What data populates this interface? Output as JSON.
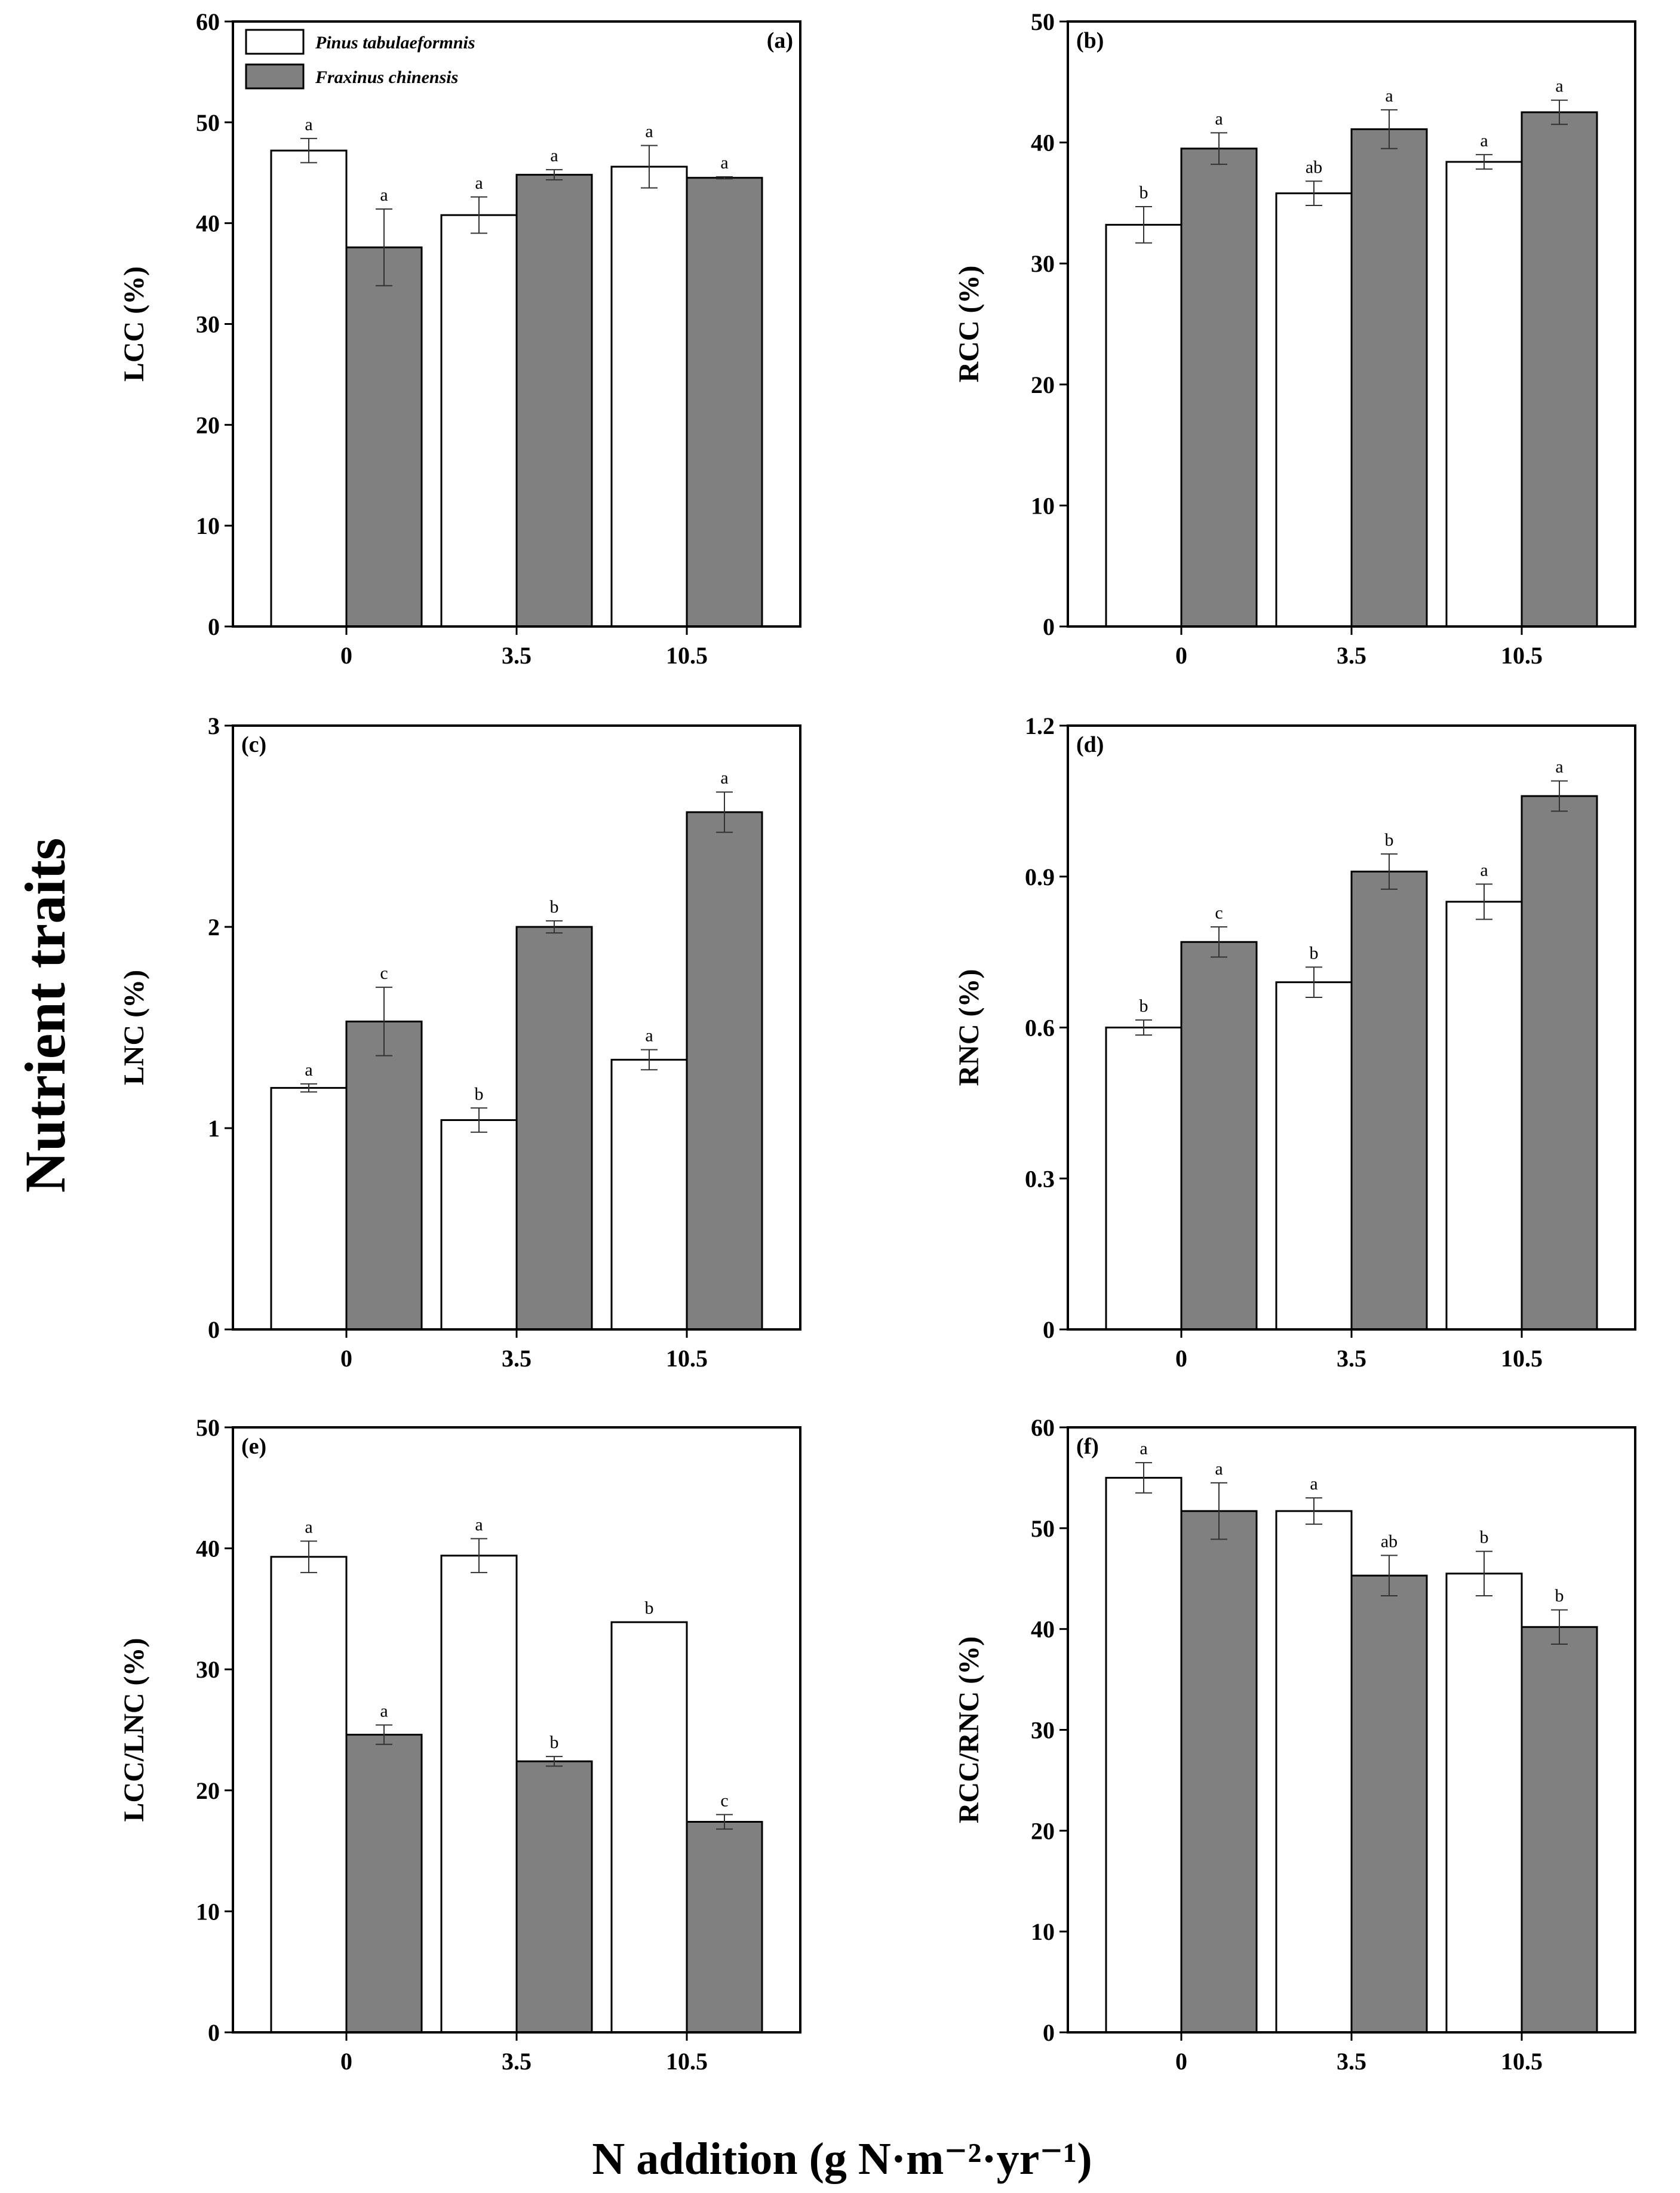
{
  "figure": {
    "y_title": "Nutrient traits",
    "x_title": "N addition (g N·m⁻²·yr⁻¹)",
    "colors": {
      "pinus": "#ffffff",
      "fraxinus": "#808080",
      "stroke": "#000000"
    }
  },
  "chart_data": [
    {
      "type": "bar",
      "label": "(a)",
      "ylabel": "LCC (%)",
      "ylim": [
        0,
        60
      ],
      "yticks": [
        "0",
        "10",
        "20",
        "30",
        "40",
        "50",
        "60"
      ],
      "categories": [
        "0",
        "3.5",
        "10.5"
      ],
      "legend": [
        "Pinus tabulaeformnis",
        "Fraxinus chinensis"
      ],
      "series": [
        {
          "name": "Pinus tabulaeformnis",
          "values": [
            47.2,
            40.8,
            45.6
          ],
          "errors": [
            1.2,
            1.8,
            2.1
          ],
          "letters": [
            "a",
            "a",
            "a"
          ]
        },
        {
          "name": "Fraxinus chinensis",
          "values": [
            37.6,
            44.8,
            44.5
          ],
          "errors": [
            3.8,
            0.5,
            0.1
          ],
          "letters": [
            "a",
            "a",
            "a"
          ]
        }
      ]
    },
    {
      "type": "bar",
      "label": "(b)",
      "ylabel": "RCC (%)",
      "ylim": [
        0,
        50
      ],
      "yticks": [
        "0",
        "10",
        "20",
        "30",
        "40",
        "50"
      ],
      "categories": [
        "0",
        "3.5",
        "10.5"
      ],
      "series": [
        {
          "name": "Pinus tabulaeformnis",
          "values": [
            33.2,
            35.8,
            38.4
          ],
          "errors": [
            1.5,
            1.0,
            0.6
          ],
          "letters": [
            "b",
            "ab",
            "a"
          ]
        },
        {
          "name": "Fraxinus chinensis",
          "values": [
            39.5,
            41.1,
            42.5
          ],
          "errors": [
            1.3,
            1.6,
            1.0
          ],
          "letters": [
            "a",
            "a",
            "a"
          ]
        }
      ]
    },
    {
      "type": "bar",
      "label": "(c)",
      "ylabel": "LNC (%)",
      "ylim": [
        0,
        3
      ],
      "yticks": [
        "0",
        "1",
        "2",
        "3"
      ],
      "categories": [
        "0",
        "3.5",
        "10.5"
      ],
      "series": [
        {
          "name": "Pinus tabulaeformnis",
          "values": [
            1.2,
            1.04,
            1.34
          ],
          "errors": [
            0.02,
            0.06,
            0.05
          ],
          "letters": [
            "a",
            "b",
            "a"
          ]
        },
        {
          "name": "Fraxinus chinensis",
          "values": [
            1.53,
            2.0,
            2.57
          ],
          "errors": [
            0.17,
            0.03,
            0.1
          ],
          "letters": [
            "c",
            "b",
            "a"
          ]
        }
      ]
    },
    {
      "type": "bar",
      "label": "(d)",
      "ylabel": "RNC (%)",
      "ylim": [
        0,
        1.2
      ],
      "yticks": [
        "0",
        "0.3",
        "0.6",
        "0.9",
        "1.2"
      ],
      "categories": [
        "0",
        "3.5",
        "10.5"
      ],
      "series": [
        {
          "name": "Pinus tabulaeformnis",
          "values": [
            0.6,
            0.69,
            0.85
          ],
          "errors": [
            0.015,
            0.03,
            0.035
          ],
          "letters": [
            "b",
            "b",
            "a"
          ]
        },
        {
          "name": "Fraxinus chinensis",
          "values": [
            0.77,
            0.91,
            1.06
          ],
          "errors": [
            0.03,
            0.035,
            0.03
          ],
          "letters": [
            "c",
            "b",
            "a"
          ]
        }
      ]
    },
    {
      "type": "bar",
      "label": "(e)",
      "ylabel": "LCC/LNC (%)",
      "ylim": [
        0,
        50
      ],
      "yticks": [
        "0",
        "10",
        "20",
        "30",
        "40",
        "50"
      ],
      "categories": [
        "0",
        "3.5",
        "10.5"
      ],
      "series": [
        {
          "name": "Pinus tabulaeformnis",
          "values": [
            39.3,
            39.4,
            33.9
          ],
          "errors": [
            1.3,
            1.4,
            0.0
          ],
          "letters": [
            "a",
            "a",
            "b"
          ]
        },
        {
          "name": "Fraxinus chinensis",
          "values": [
            24.6,
            22.4,
            17.4
          ],
          "errors": [
            0.8,
            0.4,
            0.6
          ],
          "letters": [
            "a",
            "b",
            "c"
          ]
        }
      ]
    },
    {
      "type": "bar",
      "label": "(f)",
      "ylabel": "RCC/RNC (%)",
      "ylim": [
        0,
        60
      ],
      "yticks": [
        "0",
        "10",
        "20",
        "30",
        "40",
        "50",
        "60"
      ],
      "categories": [
        "0",
        "3.5",
        "10.5"
      ],
      "series": [
        {
          "name": "Pinus tabulaeformnis",
          "values": [
            55.0,
            51.7,
            45.5
          ],
          "errors": [
            1.5,
            1.3,
            2.2
          ],
          "letters": [
            "a",
            "a",
            "b"
          ]
        },
        {
          "name": "Fraxinus chinensis",
          "values": [
            51.7,
            45.3,
            40.2
          ],
          "errors": [
            2.8,
            2.0,
            1.7
          ],
          "letters": [
            "a",
            "ab",
            "b"
          ]
        }
      ]
    }
  ]
}
